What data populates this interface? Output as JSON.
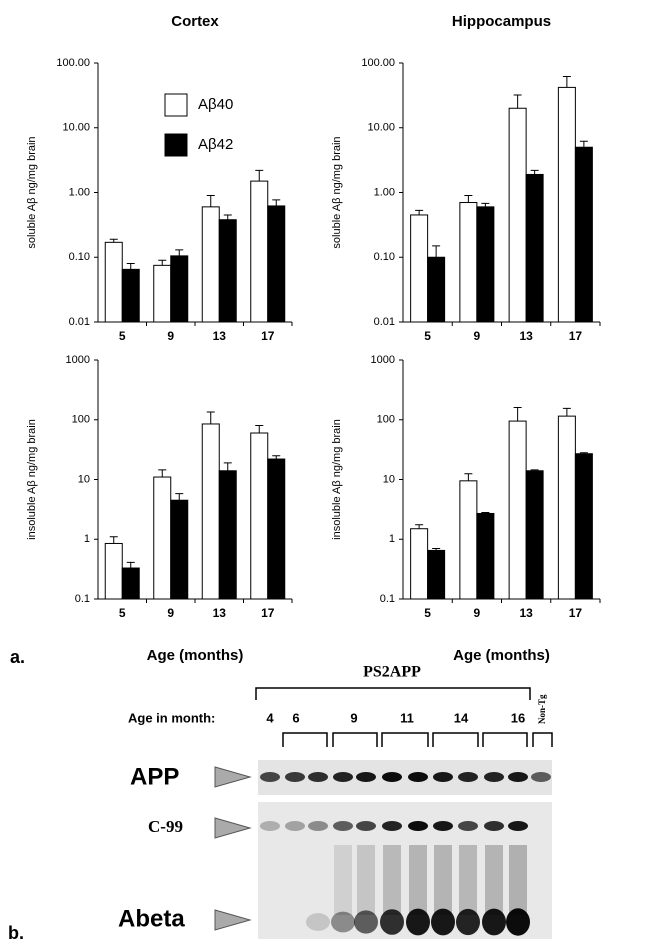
{
  "chart_data": [
    {
      "type": "bar",
      "title": "Cortex",
      "y_label": "soluble Aβ ng/mg brain",
      "log_scale": true,
      "legend": "upper left",
      "categories": [
        "5",
        "9",
        "13",
        "17"
      ],
      "ylim": [
        0.01,
        100
      ],
      "yticks": [
        {
          "value": 0.01,
          "label": "0.01"
        },
        {
          "value": 0.1,
          "label": "0.10"
        },
        {
          "value": 1,
          "label": "1.00"
        },
        {
          "value": 10,
          "label": "10.00"
        },
        {
          "value": 100,
          "label": "100.00"
        }
      ],
      "series": [
        {
          "name": "Aβ40",
          "color": "#ffffff",
          "values": [
            0.17,
            0.075,
            0.6,
            1.5
          ],
          "errors": [
            0.02,
            0.015,
            0.3,
            0.7
          ]
        },
        {
          "name": "Aβ42",
          "color": "#000000",
          "values": [
            0.065,
            0.105,
            0.38,
            0.62
          ],
          "errors": [
            0.015,
            0.025,
            0.07,
            0.15
          ]
        }
      ]
    },
    {
      "type": "bar",
      "title": "Hippocampus",
      "y_label": "soluble Aβ ng/mg brain",
      "log_scale": true,
      "categories": [
        "5",
        "9",
        "13",
        "17"
      ],
      "ylim": [
        0.01,
        100
      ],
      "yticks": [
        {
          "value": 0.01,
          "label": "0.01"
        },
        {
          "value": 0.1,
          "label": "0.10"
        },
        {
          "value": 1,
          "label": "1.00"
        },
        {
          "value": 10,
          "label": "10.00"
        },
        {
          "value": 100,
          "label": "100.00"
        }
      ],
      "series": [
        {
          "color": "#ffffff",
          "values": [
            0.45,
            0.7,
            20,
            42
          ],
          "errors": [
            0.08,
            0.2,
            12,
            20
          ]
        },
        {
          "color": "#000000",
          "values": [
            0.1,
            0.6,
            1.9,
            5
          ],
          "errors": [
            0.05,
            0.08,
            0.3,
            1.2
          ]
        }
      ]
    },
    {
      "type": "bar",
      "x_label": "Age (months)",
      "y_label": "insoluble Aβ ng/mg brain",
      "log_scale": true,
      "categories": [
        "5",
        "9",
        "13",
        "17"
      ],
      "ylim": [
        0.1,
        1000
      ],
      "yticks": [
        0.1,
        1,
        10,
        100,
        1000
      ],
      "series": [
        {
          "color": "#ffffff",
          "values": [
            0.85,
            11,
            85,
            60
          ],
          "errors": [
            0.25,
            3.5,
            50,
            20
          ]
        },
        {
          "color": "#000000",
          "values": [
            0.33,
            4.5,
            14,
            22
          ],
          "errors": [
            0.08,
            1.3,
            5,
            3
          ]
        }
      ]
    },
    {
      "type": "bar",
      "x_label": "Age (months)",
      "y_label": "insoluble Aβ ng/mg brain",
      "log_scale": true,
      "categories": [
        "5",
        "9",
        "13",
        "17"
      ],
      "ylim": [
        0.1,
        1000
      ],
      "yticks": [
        0.1,
        1,
        10,
        100,
        1000
      ],
      "series": [
        {
          "color": "#ffffff",
          "values": [
            1.5,
            9.5,
            95,
            115
          ],
          "errors": [
            0.25,
            3,
            65,
            40
          ]
        },
        {
          "color": "#000000",
          "values": [
            0.65,
            2.7,
            14,
            27
          ],
          "errors": [
            0.05,
            0.1,
            0.5,
            1
          ]
        }
      ]
    }
  ],
  "panel_labels": [
    "a.",
    "b."
  ],
  "blot": {
    "group_label": "PS2APP",
    "age_label": "Age in month:",
    "ages": [
      "4",
      "6",
      "9",
      "11",
      "14",
      "16"
    ],
    "control": "Non-Tg",
    "bands": [
      "APP",
      "C-99",
      "Abeta"
    ]
  }
}
